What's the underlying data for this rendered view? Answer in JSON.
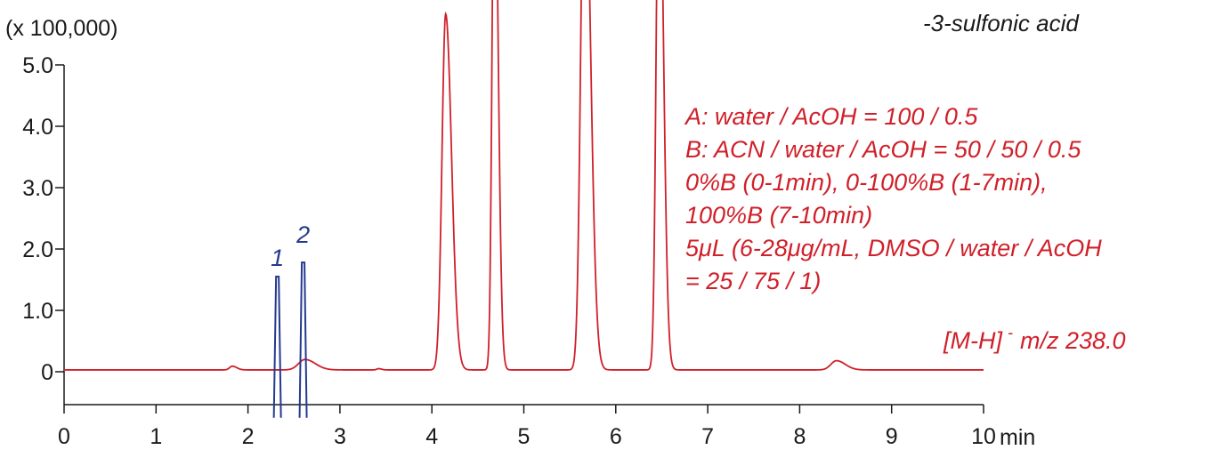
{
  "chart_data": {
    "type": "line",
    "y_unit": "(x 100,000)",
    "x_unit": "min",
    "xlim": [
      0,
      10
    ],
    "ylim": [
      -0.5,
      5.0
    ],
    "x_ticks": [
      "0",
      "1",
      "2",
      "3",
      "4",
      "5",
      "6",
      "7",
      "8",
      "9",
      "10"
    ],
    "y_ticks": [
      {
        "value": 5.0,
        "label": "5.0"
      },
      {
        "value": 4.0,
        "label": "4.0"
      },
      {
        "value": 3.0,
        "label": "3.0"
      },
      {
        "value": 2.0,
        "label": "2.0"
      },
      {
        "value": 1.0,
        "label": "1.0"
      },
      {
        "value": 0,
        "label": "0"
      }
    ],
    "baseline": 0.03,
    "compound_lines": [
      "-3-sulfonic acid"
    ],
    "conditions": [
      "A: water / AcOH = 100 / 0.5",
      "B: ACN / water / AcOH = 50 / 50 / 0.5",
      "0%B (0-1min), 0-100%B (1-7min),",
      "100%B (7-10min)",
      "5μL (6-28μg/mL, DMSO / water / AcOH",
      "= 25 / 75 / 1)"
    ],
    "ion_label": "[M-H]",
    "ion_superscript": "-",
    "ion_mz": "m/z 238.0",
    "series": [
      {
        "color": "#d0202a",
        "peaks": [
          {
            "rt": 1.83,
            "height": 0.06,
            "width": 0.03
          },
          {
            "rt": 2.62,
            "height": 0.17,
            "width": 0.07
          },
          {
            "rt": 3.42,
            "height": 0.02,
            "width": 0.02
          },
          {
            "rt": 4.15,
            "height": 5.8,
            "width": 0.04
          },
          {
            "rt": 4.68,
            "height": 9.0,
            "width": 0.025
          },
          {
            "rt": 5.66,
            "height": 9.0,
            "width": 0.04
          },
          {
            "rt": 6.47,
            "height": 9.0,
            "width": 0.03
          },
          {
            "rt": 8.4,
            "height": 0.15,
            "width": 0.06
          }
        ]
      },
      {
        "color": "#243a8f",
        "peaks": [
          {
            "rt": 2.32,
            "label": "1",
            "height": 1.55,
            "dip": -0.75
          },
          {
            "rt": 2.6,
            "label": "2",
            "height": 1.78,
            "dip": -0.75
          }
        ]
      }
    ]
  }
}
